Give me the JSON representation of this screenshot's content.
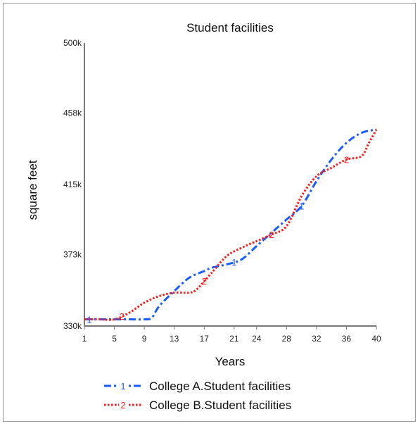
{
  "chart_data": {
    "type": "line",
    "title": "Student facilities",
    "xlabel": "Years",
    "ylabel": "square feet",
    "xlim": [
      1,
      40
    ],
    "ylim": [
      330,
      500
    ],
    "x_ticks": [
      1,
      5,
      9,
      13,
      17,
      21,
      24,
      28,
      32,
      36,
      40
    ],
    "y_ticks": [
      330,
      373,
      415,
      458,
      500
    ],
    "y_tick_labels": [
      "330k",
      "373k",
      "415k",
      "458k",
      "500k"
    ],
    "grid": false,
    "legend_position": "bottom",
    "series": [
      {
        "name": "College A.Student facilities",
        "marker": "1",
        "color": "#1a5cff",
        "style": "dash-dot",
        "x": [
          1,
          3,
          5,
          7,
          9,
          10,
          11,
          13,
          15,
          17,
          18,
          20,
          22,
          24,
          26,
          28,
          30,
          32,
          34,
          36,
          38,
          40
        ],
        "y": [
          334,
          334,
          334,
          334,
          334,
          335,
          342,
          351,
          359,
          363,
          365,
          367,
          370,
          378,
          386,
          394,
          402,
          417,
          430,
          440,
          446,
          448
        ]
      },
      {
        "name": "College B.Student facilities",
        "marker": "2",
        "color": "#ff1a1a",
        "style": "dotted",
        "x": [
          1,
          3,
          5,
          7,
          9,
          11,
          13,
          15,
          16,
          18,
          20,
          22,
          24,
          26,
          28,
          30,
          32,
          34,
          36,
          38,
          39,
          40
        ],
        "y": [
          334,
          334,
          334,
          338,
          344,
          348,
          350,
          350,
          352,
          362,
          372,
          377,
          381,
          385,
          390,
          408,
          420,
          425,
          430,
          432,
          440,
          448
        ]
      }
    ]
  }
}
